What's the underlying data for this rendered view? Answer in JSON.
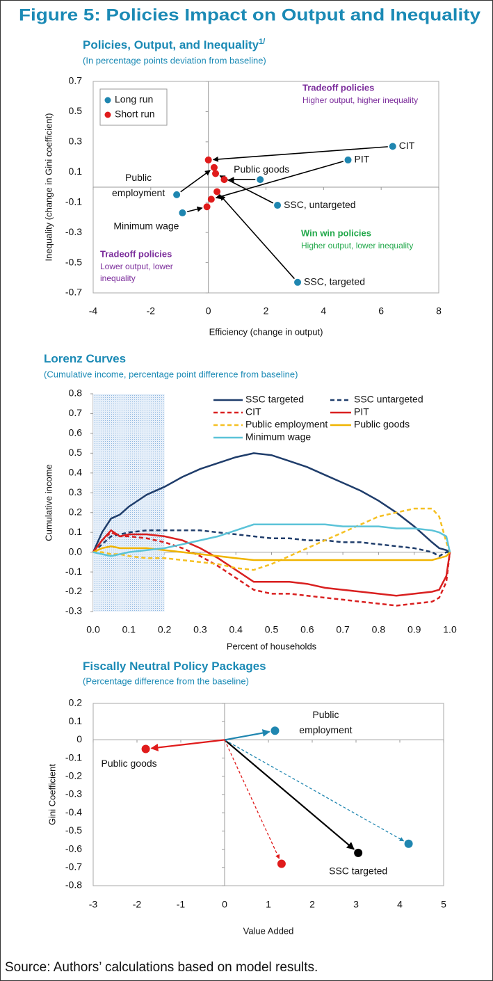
{
  "title": "Figure 5: Policies Impact on Output and Inequality",
  "source": "Source: Authors’ calculations based on model results.",
  "chart_data": [
    {
      "type": "scatter",
      "title": "Policies, Output, and Inequality",
      "title_note": "1/",
      "subtitle": "(In percentage points deviation from baseline)",
      "x_label": "Efficiency (change in output)",
      "y_label": "Inequality (change in Gini coefficient)",
      "xlim": [
        -4,
        8
      ],
      "xticks": [
        -4,
        -2,
        0,
        2,
        4,
        6,
        8
      ],
      "ylim": [
        -0.7,
        0.7
      ],
      "yticks": [
        -0.7,
        -0.5,
        -0.3,
        -0.1,
        0.1,
        0.3,
        0.5,
        0.7
      ],
      "legend": "top-left",
      "arrows": true,
      "point_labels": [
        "CIT",
        "PIT",
        "Public goods",
        "SSC, untargeted",
        "SSC, targeted",
        "Public employment",
        "Minimum wage"
      ],
      "series": [
        {
          "name": "Long run",
          "color": "#1f86b0",
          "x": [
            6.4,
            4.85,
            1.8,
            2.4,
            3.1,
            -1.1,
            -0.9
          ],
          "values": [
            0.27,
            0.18,
            0.05,
            -0.12,
            -0.63,
            -0.05,
            -0.17
          ]
        },
        {
          "name": "Short run",
          "color": "#e01b1b",
          "x": [
            0.0,
            0.1,
            0.55,
            0.25,
            0.3,
            0.2,
            -0.05
          ],
          "values": [
            0.18,
            -0.08,
            0.05,
            0.09,
            -0.03,
            0.13,
            -0.13
          ]
        }
      ],
      "annotations": [
        {
          "title": "Tradeoff policies",
          "text": "Higher output, higher inequality",
          "color": "#7b2c9b"
        },
        {
          "title": "Win win policies",
          "text": "Higher output, lower inequality",
          "color": "#21a84a"
        },
        {
          "title": "Tradeoff policies",
          "text": "Lower output, lower inequality",
          "color": "#7b2c9b"
        }
      ]
    },
    {
      "type": "line",
      "title": "Lorenz Curves",
      "subtitle": "(Cumulative income, percentage point difference from baseline)",
      "x_label": "Percent of households",
      "y_label": "Cumulative income",
      "xlim": [
        0,
        1
      ],
      "xticks": [
        {
          "value": 0,
          "label": "0.0"
        },
        0.1,
        0.2,
        0.3,
        0.4,
        0.5,
        0.6,
        0.7,
        0.8,
        0.9,
        {
          "value": 1,
          "label": "1.0"
        }
      ],
      "ylim": [
        -0.3,
        0.8
      ],
      "yticks": [
        -0.3,
        -0.2,
        -0.1,
        {
          "value": 0,
          "label": "0.0"
        },
        0.1,
        0.2,
        0.3,
        0.4,
        0.5,
        0.6,
        0.7,
        0.8
      ],
      "shaded_x": [
        0,
        0.2
      ],
      "legend": "top-right",
      "x": [
        0,
        0.025,
        0.05,
        0.075,
        0.1,
        0.15,
        0.2,
        0.25,
        0.3,
        0.35,
        0.4,
        0.45,
        0.5,
        0.55,
        0.6,
        0.65,
        0.7,
        0.75,
        0.8,
        0.85,
        0.9,
        0.95,
        0.97,
        0.99,
        1
      ],
      "series": [
        {
          "name": "SSC targeted",
          "color": "#1f3d6b",
          "dashed": false,
          "values": [
            0,
            0.1,
            0.17,
            0.19,
            0.23,
            0.29,
            0.33,
            0.38,
            0.42,
            0.45,
            0.48,
            0.5,
            0.49,
            0.46,
            0.43,
            0.39,
            0.35,
            0.31,
            0.26,
            0.2,
            0.13,
            0.05,
            0.02,
            0.01,
            0
          ]
        },
        {
          "name": "SSC untargeted",
          "color": "#1f3d6b",
          "dashed": true,
          "values": [
            0,
            0.04,
            0.08,
            0.09,
            0.1,
            0.11,
            0.11,
            0.11,
            0.11,
            0.1,
            0.09,
            0.08,
            0.07,
            0.07,
            0.06,
            0.06,
            0.05,
            0.05,
            0.04,
            0.03,
            0.02,
            0,
            -0.02,
            0,
            0
          ]
        },
        {
          "name": "CIT",
          "color": "#d92020",
          "dashed": true,
          "values": [
            0,
            0.06,
            0.1,
            0.08,
            0.08,
            0.07,
            0.05,
            0.02,
            -0.02,
            -0.07,
            -0.13,
            -0.19,
            -0.21,
            -0.21,
            -0.22,
            -0.23,
            -0.24,
            -0.25,
            -0.26,
            -0.27,
            -0.26,
            -0.25,
            -0.23,
            -0.15,
            0
          ]
        },
        {
          "name": "PIT",
          "color": "#d92020",
          "dashed": false,
          "values": [
            0,
            0.06,
            0.11,
            0.08,
            0.09,
            0.09,
            0.08,
            0.06,
            0.02,
            -0.03,
            -0.09,
            -0.15,
            -0.15,
            -0.15,
            -0.16,
            -0.18,
            -0.19,
            -0.2,
            -0.21,
            -0.22,
            -0.21,
            -0.2,
            -0.19,
            -0.12,
            0
          ]
        },
        {
          "name": "Public employment",
          "color": "#f5c022",
          "dashed": true,
          "values": [
            0,
            0,
            -0.01,
            -0.01,
            -0.02,
            -0.03,
            -0.03,
            -0.04,
            -0.05,
            -0.06,
            -0.08,
            -0.09,
            -0.06,
            -0.02,
            0.02,
            0.06,
            0.1,
            0.14,
            0.18,
            0.2,
            0.22,
            0.22,
            0.18,
            0.05,
            0
          ]
        },
        {
          "name": "Public goods",
          "color": "#f0b400",
          "dashed": false,
          "values": [
            0,
            0.02,
            0.03,
            0.02,
            0.02,
            0.02,
            0.01,
            0,
            -0.01,
            -0.02,
            -0.03,
            -0.04,
            -0.04,
            -0.04,
            -0.04,
            -0.04,
            -0.04,
            -0.04,
            -0.04,
            -0.04,
            -0.04,
            -0.04,
            -0.03,
            -0.02,
            0
          ]
        },
        {
          "name": "Minimum wage",
          "color": "#5bc3d8",
          "dashed": false,
          "values": [
            0,
            -0.01,
            -0.02,
            -0.01,
            0,
            0.01,
            0.02,
            0.04,
            0.06,
            0.08,
            0.11,
            0.14,
            0.14,
            0.14,
            0.14,
            0.14,
            0.13,
            0.13,
            0.13,
            0.12,
            0.12,
            0.11,
            0.1,
            0.08,
            0
          ]
        }
      ]
    },
    {
      "type": "vector",
      "title": "Fiscally Neutral Policy Packages",
      "subtitle": "(Percentage difference from the baseline)",
      "x_label": "Value Added",
      "y_label": "Gini Coefficient",
      "xlim": [
        -3,
        5
      ],
      "xticks": [
        -3,
        -2,
        -1,
        0,
        1,
        2,
        3,
        4,
        5
      ],
      "ylim": [
        -0.8,
        0.2
      ],
      "yticks": [
        -0.8,
        -0.7,
        -0.6,
        -0.5,
        -0.4,
        -0.3,
        -0.2,
        -0.1,
        0,
        0.1,
        0.2
      ],
      "x": [
        1.15,
        -1.8,
        3.05,
        4.2,
        1.3
      ],
      "values": [
        0.05,
        -0.05,
        -0.62,
        -0.57,
        -0.68
      ],
      "labels": [
        "Public employment",
        "Public goods",
        "SSC targeted",
        null,
        null
      ],
      "colors": [
        "#1f86b0",
        "#e01b1b",
        "#000000",
        "#1f86b0",
        "#e01b1b"
      ],
      "dashed": [
        false,
        false,
        false,
        true,
        true
      ]
    }
  ]
}
